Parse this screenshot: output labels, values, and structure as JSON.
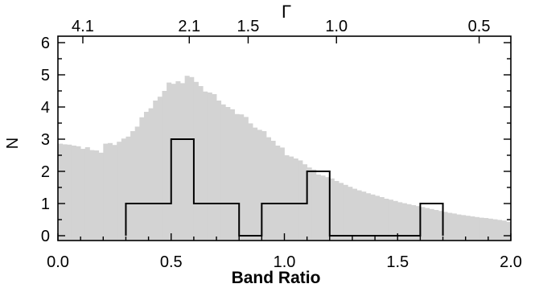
{
  "chart_data": {
    "type": "bar",
    "xlabel": "Band Ratio",
    "ylabel": "N",
    "top_axis_label": "Γ",
    "xlim": [
      0.0,
      2.0
    ],
    "ylim": [
      -0.15,
      6.2
    ],
    "x_ticks": [
      "0.0",
      "0.5",
      "1.0",
      "1.5",
      "2.0"
    ],
    "x_tick_values": [
      0.0,
      0.5,
      1.0,
      1.5,
      2.0
    ],
    "y_ticks": [
      "0",
      "1",
      "2",
      "3",
      "4",
      "5",
      "6"
    ],
    "y_tick_values": [
      0,
      1,
      2,
      3,
      4,
      5,
      6
    ],
    "top_ticks": [
      "4.1",
      "2.1",
      "1.5",
      "1.0",
      "0.5"
    ],
    "top_tick_positions": [
      0.11,
      0.58,
      0.84,
      1.23,
      1.86
    ],
    "grid": false,
    "series": [
      {
        "kind": "filled-histogram",
        "color": "#d3d3d3",
        "bin_width": 0.02,
        "bin_start": 0.0,
        "values": [
          2.86,
          2.84,
          2.83,
          2.8,
          2.78,
          2.7,
          2.75,
          2.66,
          2.65,
          2.58,
          2.86,
          2.88,
          2.82,
          2.92,
          3.02,
          3.08,
          3.25,
          3.39,
          3.68,
          3.85,
          3.96,
          4.2,
          4.32,
          4.5,
          4.76,
          4.72,
          4.8,
          4.74,
          4.97,
          4.93,
          4.78,
          4.65,
          4.48,
          4.45,
          4.4,
          4.2,
          4.08,
          4.0,
          3.93,
          3.78,
          3.77,
          3.69,
          3.49,
          3.36,
          3.29,
          3.25,
          3.06,
          2.95,
          2.8,
          2.74,
          2.5,
          2.46,
          2.4,
          2.34,
          2.22,
          2.12,
          2.06,
          1.9,
          1.87,
          1.82,
          1.78,
          1.7,
          1.64,
          1.58,
          1.52,
          1.46,
          1.41,
          1.37,
          1.32,
          1.28,
          1.24,
          1.2,
          1.15,
          1.12,
          1.08,
          1.04,
          1.01,
          0.98,
          0.95,
          0.92,
          0.89,
          0.86,
          0.83,
          0.8,
          0.77,
          0.74,
          0.71,
          0.69,
          0.66,
          0.64,
          0.62,
          0.6,
          0.58,
          0.56,
          0.55,
          0.53,
          0.51,
          0.49,
          0.47,
          0.43
        ]
      },
      {
        "kind": "step-histogram",
        "color": "#000000",
        "bins": [
          {
            "x0": 0.3,
            "x1": 0.5,
            "value": 1
          },
          {
            "x0": 0.5,
            "x1": 0.6,
            "value": 3
          },
          {
            "x0": 0.6,
            "x1": 0.8,
            "value": 1
          },
          {
            "x0": 0.8,
            "x1": 0.9,
            "value": 0
          },
          {
            "x0": 0.9,
            "x1": 1.1,
            "value": 1
          },
          {
            "x0": 1.1,
            "x1": 1.2,
            "value": 2
          },
          {
            "x0": 1.2,
            "x1": 1.6,
            "value": 0
          },
          {
            "x0": 1.6,
            "x1": 1.7,
            "value": 1
          }
        ]
      }
    ]
  }
}
